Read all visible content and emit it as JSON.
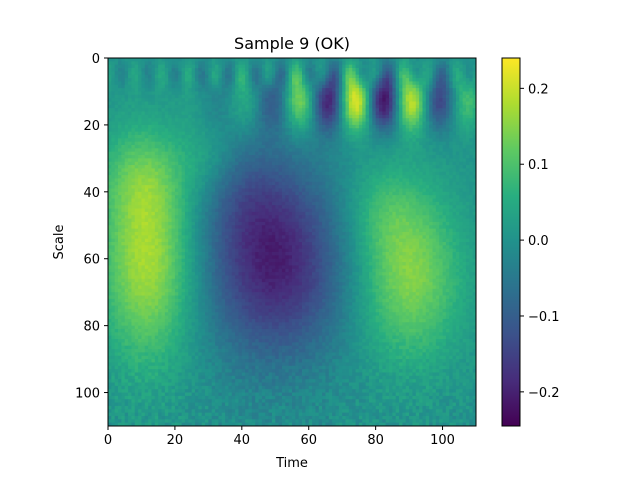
{
  "chart_data": {
    "type": "heatmap",
    "title": "Sample 9 (OK)",
    "xlabel": "Time",
    "ylabel": "Scale",
    "colormap": "viridis",
    "x_range": [
      0,
      110
    ],
    "y_range": [
      0,
      110
    ],
    "y_inverted": true,
    "x_ticks": [
      0,
      20,
      40,
      60,
      80,
      100
    ],
    "x_tick_labels": [
      "0",
      "20",
      "40",
      "60",
      "80",
      "100"
    ],
    "y_ticks": [
      0,
      20,
      40,
      60,
      80,
      100
    ],
    "y_tick_labels": [
      "0",
      "20",
      "40",
      "60",
      "80",
      "100"
    ],
    "colorbar": {
      "range": [
        -0.245,
        0.24
      ],
      "ticks": [
        0.2,
        0.1,
        0.0,
        -0.1,
        -0.2
      ],
      "tick_labels": [
        "0.2",
        "0.1",
        "0.0",
        "−0.1",
        "−0.2"
      ]
    },
    "features": [
      {
        "type": "blob",
        "x": 12,
        "y": 60,
        "sx": 10,
        "sy": 22,
        "value": 0.18
      },
      {
        "type": "blob",
        "x": 10,
        "y": 35,
        "sx": 9,
        "sy": 10,
        "value": 0.06
      },
      {
        "type": "blob",
        "x": 50,
        "y": 62,
        "sx": 15,
        "sy": 20,
        "value": -0.2
      },
      {
        "type": "blob",
        "x": 42,
        "y": 40,
        "sx": 10,
        "sy": 12,
        "value": -0.05
      },
      {
        "type": "blob",
        "x": 90,
        "y": 65,
        "sx": 11,
        "sy": 18,
        "value": 0.15
      },
      {
        "type": "blob",
        "x": 82,
        "y": 45,
        "sx": 8,
        "sy": 10,
        "value": 0.05
      },
      {
        "type": "blob",
        "x": 30,
        "y": 30,
        "sx": 6,
        "sy": 8,
        "value": 0.04
      },
      {
        "type": "oscillation",
        "y": 13,
        "sy": 6,
        "x_center": 78,
        "x_spread": 22,
        "period": 17,
        "phase_x": 74,
        "amplitude": 0.22
      },
      {
        "type": "oscillation",
        "y": 5,
        "sy": 3,
        "x_center": 60,
        "x_spread": 50,
        "period": 8,
        "phase_x": 0,
        "amplitude": 0.06
      }
    ]
  }
}
